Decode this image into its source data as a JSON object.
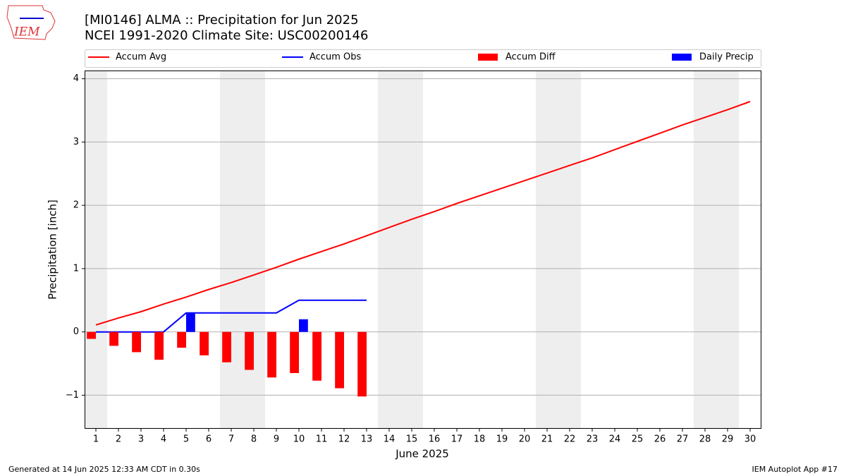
{
  "chart_data": {
    "type": "combo",
    "title": "[MI0146] ALMA :: Precipitation for Jun 2025",
    "subtitle": "NCEI 1991-2020 Climate Site: USC00200146",
    "x_label": "June 2025",
    "y_label": "Precipitation [inch]",
    "x": [
      1,
      2,
      3,
      4,
      5,
      6,
      7,
      8,
      9,
      10,
      11,
      12,
      13,
      14,
      15,
      16,
      17,
      18,
      19,
      20,
      21,
      22,
      23,
      24,
      25,
      26,
      27,
      28,
      29,
      30
    ],
    "xlim": [
      0.5,
      30.5
    ],
    "xticks": [
      1,
      2,
      3,
      4,
      5,
      6,
      7,
      8,
      9,
      10,
      11,
      12,
      13,
      14,
      15,
      16,
      17,
      18,
      19,
      20,
      21,
      22,
      23,
      24,
      25,
      26,
      27,
      28,
      29,
      30
    ],
    "ylim": [
      -1.53,
      4.13
    ],
    "yticks": [
      {
        "value": -1,
        "label": "−1"
      },
      0,
      1,
      2,
      3,
      4
    ],
    "grid": true,
    "weekend_days": [
      1,
      7,
      8,
      14,
      15,
      21,
      22,
      28,
      29
    ],
    "series": [
      {
        "name": "Accum Avg",
        "type": "line",
        "color": "#ff0000",
        "values": [
          0.11,
          0.22,
          0.32,
          0.44,
          0.55,
          0.67,
          0.78,
          0.9,
          1.02,
          1.15,
          1.27,
          1.39,
          1.52,
          1.65,
          1.78,
          1.9,
          2.03,
          2.15,
          2.27,
          2.39,
          2.51,
          2.63,
          2.75,
          2.88,
          3.01,
          3.14,
          3.27,
          3.39,
          3.51,
          3.64
        ]
      },
      {
        "name": "Accum Obs",
        "type": "line",
        "color": "#0000ff",
        "values": [
          0,
          0,
          0,
          0,
          0.3,
          0.3,
          0.3,
          0.3,
          0.3,
          0.5,
          0.5,
          0.5,
          0.5,
          null,
          null,
          null,
          null,
          null,
          null,
          null,
          null,
          null,
          null,
          null,
          null,
          null,
          null,
          null,
          null,
          null
        ]
      },
      {
        "name": "Accum Diff",
        "type": "bar",
        "color": "#ff0000",
        "values": [
          -0.11,
          -0.22,
          -0.32,
          -0.44,
          -0.25,
          -0.37,
          -0.48,
          -0.6,
          -0.72,
          -0.65,
          -0.77,
          -0.89,
          -1.02,
          null,
          null,
          null,
          null,
          null,
          null,
          null,
          null,
          null,
          null,
          null,
          null,
          null,
          null,
          null,
          null,
          null
        ]
      },
      {
        "name": "Daily Precip",
        "type": "bar",
        "color": "#0000ff",
        "values": [
          0,
          0,
          0,
          0,
          0.3,
          0,
          0,
          0,
          0,
          0.2,
          0,
          0,
          0,
          null,
          null,
          null,
          null,
          null,
          null,
          null,
          null,
          null,
          null,
          null,
          null,
          null,
          null,
          null,
          null,
          null
        ]
      }
    ],
    "footer_left": "Generated at 14 Jun 2025 12:33 AM CDT in 0.30s",
    "footer_right": "IEM Autoplot App #17",
    "logo_text": "IEM"
  }
}
